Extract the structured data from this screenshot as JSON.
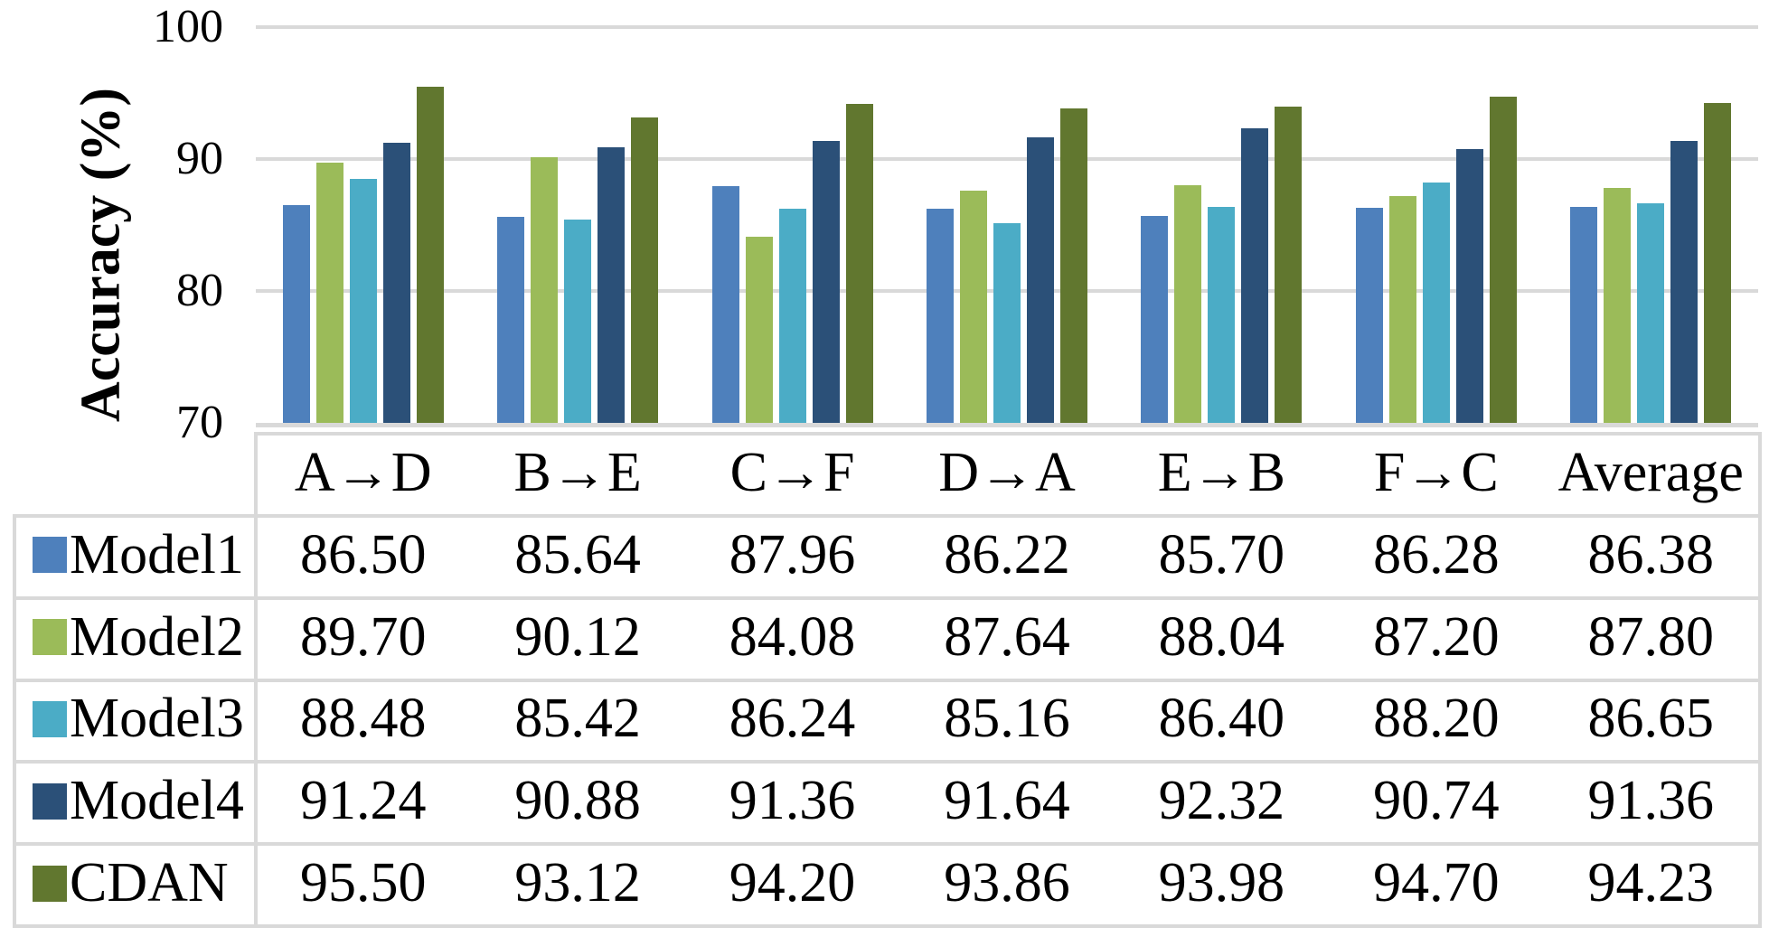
{
  "chart_data": {
    "type": "bar",
    "title": "",
    "xlabel": "",
    "ylabel": "Accuracy (%)",
    "ylim": [
      70,
      100
    ],
    "yticks": [
      70,
      80,
      90,
      100
    ],
    "grid": true,
    "legend_position": "table-left",
    "categories": [
      "A→D",
      "B→E",
      "C→F",
      "D→A",
      "E→B",
      "F→C",
      "Average"
    ],
    "series": [
      {
        "name": "Model1",
        "color": "#4E80BC",
        "values": [
          86.5,
          85.64,
          87.96,
          86.22,
          85.7,
          86.28,
          86.38
        ]
      },
      {
        "name": "Model2",
        "color": "#9BBB59",
        "values": [
          89.7,
          90.12,
          84.08,
          87.64,
          88.04,
          87.2,
          87.8
        ]
      },
      {
        "name": "Model3",
        "color": "#4BACC6",
        "values": [
          88.48,
          85.42,
          86.24,
          85.16,
          86.4,
          88.2,
          86.65
        ]
      },
      {
        "name": "Model4",
        "color": "#2B5078",
        "values": [
          91.24,
          90.88,
          91.36,
          91.64,
          92.32,
          90.74,
          91.36
        ]
      },
      {
        "name": "CDAN",
        "color": "#61772F",
        "values": [
          95.5,
          93.12,
          94.2,
          93.86,
          93.98,
          94.7,
          94.23
        ]
      }
    ]
  },
  "colors": {
    "background": "#FFFFFF",
    "gridline": "#D9D9D9",
    "table_border": "#D9D9D9",
    "text": "#000000"
  }
}
